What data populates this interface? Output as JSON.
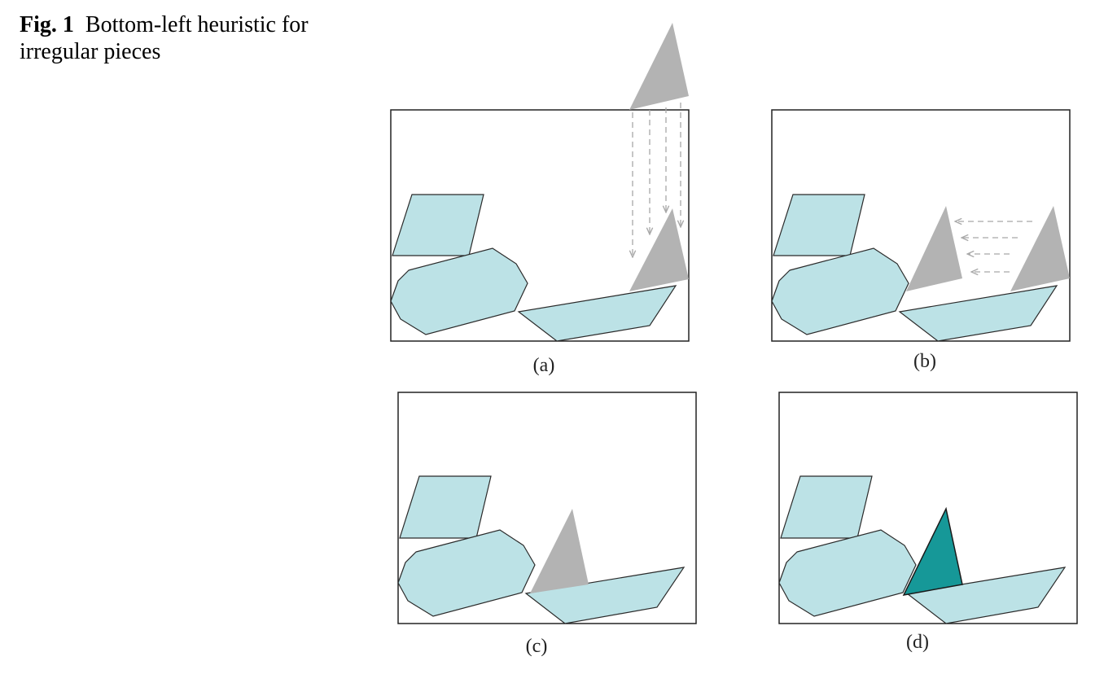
{
  "caption": {
    "label": "Fig. 1",
    "text_line1": "Bottom-left heuristic for",
    "text_line2": "irregular pieces"
  },
  "panels": [
    {
      "id": "a",
      "label": "(a)"
    },
    {
      "id": "b",
      "label": "(b)"
    },
    {
      "id": "c",
      "label": "(c)"
    },
    {
      "id": "d",
      "label": "(d)"
    }
  ],
  "colors": {
    "piece_fill": "#bce2e6",
    "moving_piece": "#b3b3b3",
    "placed_piece": "#169898",
    "outline": "#222222"
  }
}
